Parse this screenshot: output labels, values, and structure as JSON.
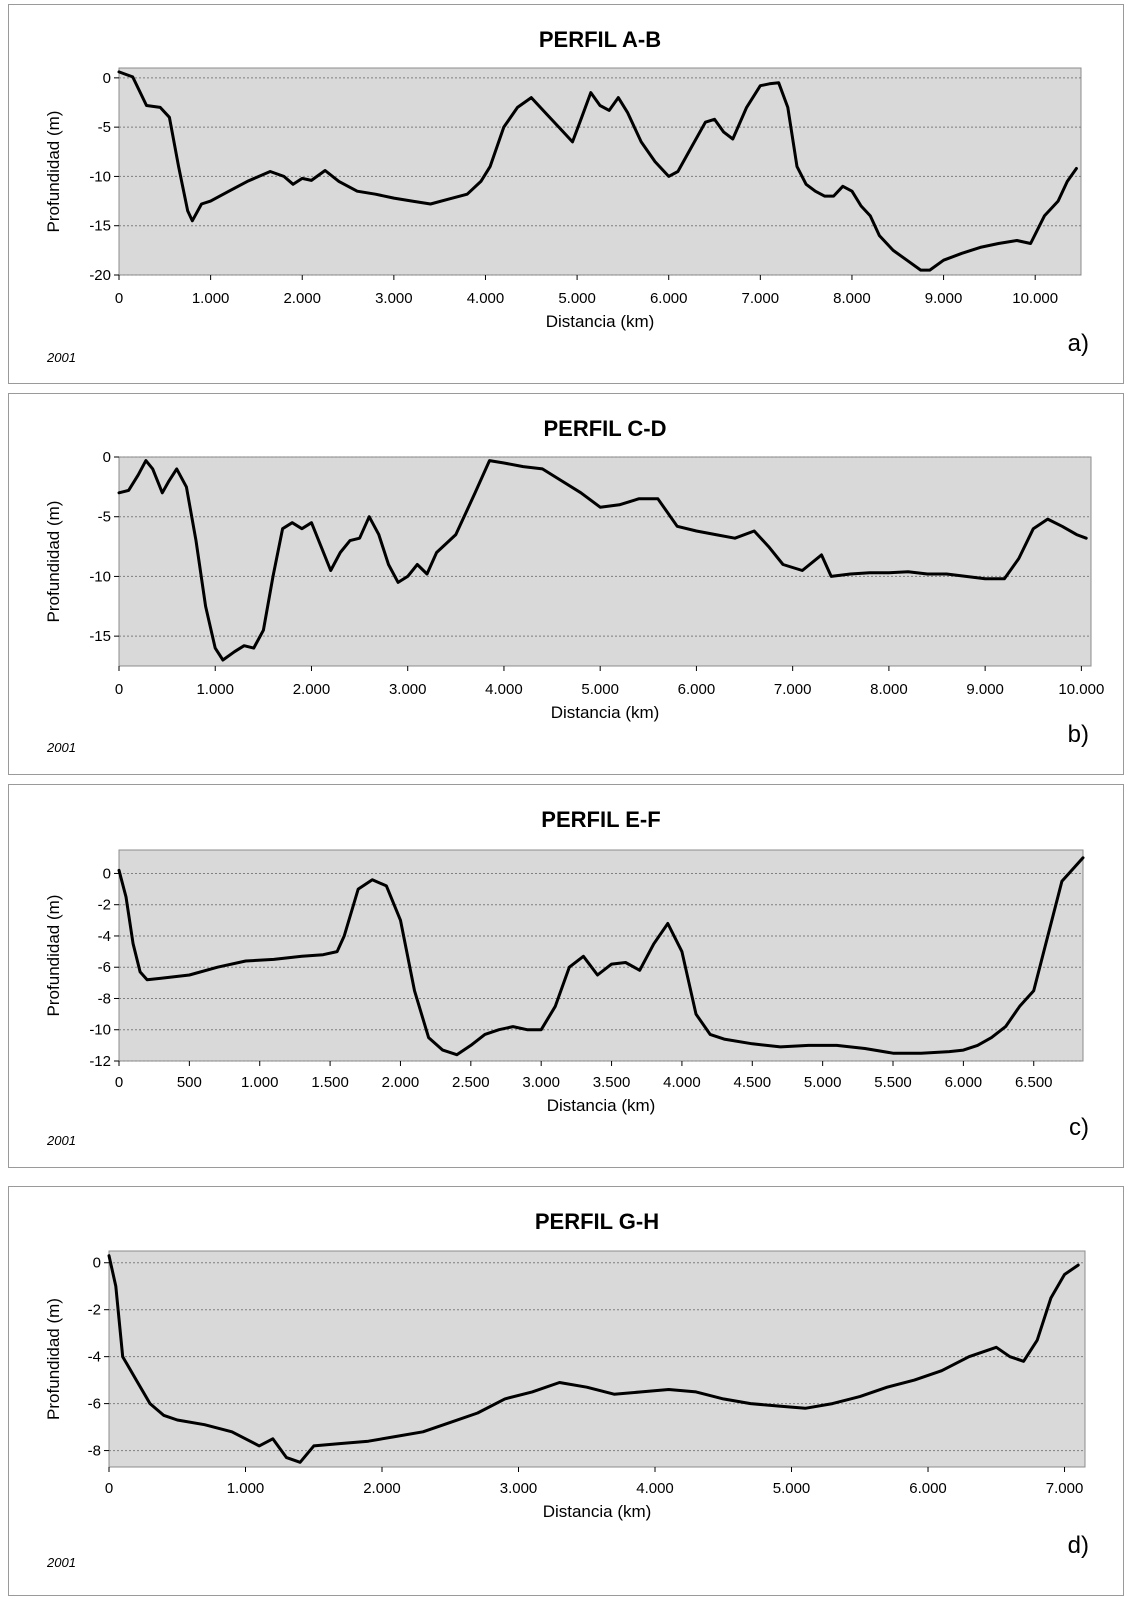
{
  "chart_data": [
    {
      "type": "line",
      "title": "PERFIL A-B",
      "xlabel": "Distancia (km)",
      "ylabel": "Profundidad (m)",
      "xlim": [
        0,
        10500
      ],
      "ylim": [
        -20,
        1
      ],
      "xticks": [
        0,
        1000,
        2000,
        3000,
        4000,
        5000,
        6000,
        7000,
        8000,
        9000,
        10000
      ],
      "xtick_labels": [
        "0",
        "1.000",
        "2.000",
        "3.000",
        "4.000",
        "5.000",
        "6.000",
        "7.000",
        "8.000",
        "9.000",
        "10.000"
      ],
      "yticks": [
        0,
        -5,
        -10,
        -15,
        -20
      ],
      "ytick_labels": [
        "0",
        "-5",
        "-10",
        "-15",
        "-20"
      ],
      "grid": "horizontal dotted",
      "year": "2001",
      "panel_label": "a)",
      "series": [
        {
          "x": [
            0,
            150,
            300,
            450,
            550,
            650,
            750,
            800,
            900,
            1000,
            1200,
            1400,
            1650,
            1800,
            1900,
            2000,
            2100,
            2250,
            2400,
            2600,
            2800,
            3000,
            3200,
            3400,
            3600,
            3800,
            3950,
            4050,
            4200,
            4350,
            4500,
            4650,
            4800,
            4950,
            5050,
            5150,
            5250,
            5350,
            5450,
            5550,
            5700,
            5850,
            6000,
            6100,
            6250,
            6400,
            6500,
            6600,
            6700,
            6850,
            7000,
            7100,
            7200,
            7300,
            7400,
            7500,
            7600,
            7700,
            7800,
            7900,
            8000,
            8100,
            8200,
            8300,
            8450,
            8600,
            8750,
            8850,
            9000,
            9200,
            9400,
            9600,
            9800,
            9950,
            10100,
            10250,
            10350,
            10450
          ],
          "y": [
            0.6,
            0.1,
            -2.8,
            -3.0,
            -4.0,
            -9.0,
            -13.5,
            -14.5,
            -12.8,
            -12.5,
            -11.5,
            -10.5,
            -9.5,
            -10.0,
            -10.8,
            -10.2,
            -10.4,
            -9.4,
            -10.5,
            -11.5,
            -11.8,
            -12.2,
            -12.5,
            -12.8,
            -12.3,
            -11.8,
            -10.5,
            -9.0,
            -5.0,
            -3.0,
            -2.0,
            -3.5,
            -5.0,
            -6.5,
            -4.0,
            -1.5,
            -2.8,
            -3.3,
            -2.0,
            -3.5,
            -6.5,
            -8.5,
            -10.0,
            -9.5,
            -7.0,
            -4.5,
            -4.2,
            -5.5,
            -6.2,
            -3.0,
            -0.8,
            -0.6,
            -0.5,
            -3.0,
            -9.0,
            -10.8,
            -11.5,
            -12.0,
            -12.0,
            -11.0,
            -11.5,
            -13.0,
            -14.0,
            -16.0,
            -17.5,
            -18.5,
            -19.5,
            -19.5,
            -18.5,
            -17.8,
            -17.2,
            -16.8,
            -16.5,
            -16.8,
            -14.0,
            -12.5,
            -10.5,
            -9.2
          ]
        }
      ]
    },
    {
      "type": "line",
      "title": "PERFIL C-D",
      "xlabel": "Distancia (km)",
      "ylabel": "Profundidad (m)",
      "xlim": [
        0,
        10100
      ],
      "ylim": [
        -17.5,
        0
      ],
      "xticks": [
        0,
        1000,
        2000,
        3000,
        4000,
        5000,
        6000,
        7000,
        8000,
        9000,
        10000
      ],
      "xtick_labels": [
        "0",
        "1.000",
        "2.000",
        "3.000",
        "4.000",
        "5.000",
        "6.000",
        "7.000",
        "8.000",
        "9.000",
        "10.000"
      ],
      "yticks": [
        0,
        -5,
        -10,
        -15
      ],
      "ytick_labels": [
        "0",
        "-5",
        "-10",
        "-15"
      ],
      "grid": "horizontal dotted",
      "year": "2001",
      "panel_label": "b)",
      "series": [
        {
          "x": [
            0,
            100,
            200,
            280,
            350,
            450,
            520,
            600,
            700,
            800,
            900,
            1000,
            1080,
            1200,
            1300,
            1400,
            1500,
            1600,
            1700,
            1800,
            1900,
            2000,
            2100,
            2200,
            2300,
            2400,
            2500,
            2600,
            2700,
            2800,
            2900,
            3000,
            3100,
            3200,
            3300,
            3500,
            3700,
            3850,
            4000,
            4200,
            4400,
            4600,
            4800,
            5000,
            5200,
            5400,
            5600,
            5800,
            6000,
            6200,
            6400,
            6600,
            6750,
            6900,
            7100,
            7300,
            7400,
            7600,
            7800,
            8000,
            8200,
            8400,
            8600,
            8800,
            9000,
            9200,
            9350,
            9500,
            9650,
            9800,
            9950,
            10050
          ],
          "y": [
            -3.0,
            -2.8,
            -1.5,
            -0.3,
            -1.0,
            -3.0,
            -2.0,
            -1.0,
            -2.5,
            -7.0,
            -12.5,
            -16.0,
            -17.0,
            -16.3,
            -15.8,
            -16.0,
            -14.5,
            -10.0,
            -6.0,
            -5.5,
            -6.0,
            -5.5,
            -7.5,
            -9.5,
            -8.0,
            -7.0,
            -6.8,
            -5.0,
            -6.5,
            -9.0,
            -10.5,
            -10.0,
            -9.0,
            -9.8,
            -8.0,
            -6.5,
            -3.0,
            -0.3,
            -0.5,
            -0.8,
            -1.0,
            -2.0,
            -3.0,
            -4.2,
            -4.0,
            -3.5,
            -3.5,
            -5.8,
            -6.2,
            -6.5,
            -6.8,
            -6.2,
            -7.5,
            -9.0,
            -9.5,
            -8.2,
            -10.0,
            -9.8,
            -9.7,
            -9.7,
            -9.6,
            -9.8,
            -9.8,
            -10.0,
            -10.2,
            -10.2,
            -8.5,
            -6.0,
            -5.2,
            -5.8,
            -6.5,
            -6.8
          ]
        }
      ]
    },
    {
      "type": "line",
      "title": "PERFIL E-F",
      "xlabel": "Distancia (km)",
      "ylabel": "Profundidad (m)",
      "xlim": [
        0,
        6850
      ],
      "ylim": [
        -12,
        1.5
      ],
      "xticks": [
        0,
        500,
        1000,
        1500,
        2000,
        2500,
        3000,
        3500,
        4000,
        4500,
        5000,
        5500,
        6000,
        6500
      ],
      "xtick_labels": [
        "0",
        "500",
        "1.000",
        "1.500",
        "2.000",
        "2.500",
        "3.000",
        "3.500",
        "4.000",
        "4.500",
        "5.000",
        "5.500",
        "6.000",
        "6.500"
      ],
      "yticks": [
        0,
        -2,
        -4,
        -6,
        -8,
        -10,
        -12
      ],
      "ytick_labels": [
        "0",
        "-2",
        "-4",
        "-6",
        "-8",
        "-10",
        "-12"
      ],
      "grid": "horizontal dotted",
      "year": "2001",
      "panel_label": "c)",
      "series": [
        {
          "x": [
            0,
            50,
            100,
            150,
            200,
            300,
            500,
            700,
            900,
            1100,
            1300,
            1450,
            1550,
            1600,
            1700,
            1800,
            1900,
            2000,
            2100,
            2200,
            2300,
            2400,
            2500,
            2600,
            2700,
            2800,
            2900,
            3000,
            3100,
            3200,
            3300,
            3400,
            3500,
            3600,
            3700,
            3800,
            3900,
            4000,
            4100,
            4200,
            4300,
            4500,
            4700,
            4900,
            5100,
            5300,
            5500,
            5700,
            5900,
            6000,
            6100,
            6200,
            6300,
            6400,
            6500,
            6600,
            6700,
            6850
          ],
          "y": [
            0.2,
            -1.5,
            -4.5,
            -6.3,
            -6.8,
            -6.7,
            -6.5,
            -6.0,
            -5.6,
            -5.5,
            -5.3,
            -5.2,
            -5.0,
            -4.0,
            -1.0,
            -0.4,
            -0.8,
            -3.0,
            -7.5,
            -10.5,
            -11.3,
            -11.6,
            -11.0,
            -10.3,
            -10.0,
            -9.8,
            -10.0,
            -10.0,
            -8.5,
            -6.0,
            -5.3,
            -6.5,
            -5.8,
            -5.7,
            -6.2,
            -4.5,
            -3.2,
            -5.0,
            -9.0,
            -10.3,
            -10.6,
            -10.9,
            -11.1,
            -11.0,
            -11.0,
            -11.2,
            -11.5,
            -11.5,
            -11.4,
            -11.3,
            -11.0,
            -10.5,
            -9.8,
            -8.5,
            -7.5,
            -4.0,
            -0.5,
            1.0
          ]
        }
      ]
    },
    {
      "type": "line",
      "title": "PERFIL G-H",
      "xlabel": "Distancia (km)",
      "ylabel": "Profundidad (m)",
      "xlim": [
        0,
        7150
      ],
      "ylim": [
        -8.7,
        0.5
      ],
      "xticks": [
        0,
        1000,
        2000,
        3000,
        4000,
        5000,
        6000,
        7000
      ],
      "xtick_labels": [
        "0",
        "1.000",
        "2.000",
        "3.000",
        "4.000",
        "5.000",
        "6.000",
        "7.000"
      ],
      "yticks": [
        0,
        -2,
        -4,
        -6,
        -8
      ],
      "ytick_labels": [
        "0",
        "-2",
        "-4",
        "-6",
        "-8"
      ],
      "grid": "horizontal dotted",
      "year": "2001",
      "panel_label": "d)",
      "series": [
        {
          "x": [
            0,
            50,
            100,
            150,
            200,
            300,
            400,
            500,
            700,
            900,
            1100,
            1200,
            1300,
            1400,
            1500,
            1700,
            1900,
            2100,
            2300,
            2500,
            2700,
            2900,
            3100,
            3300,
            3500,
            3700,
            3900,
            4100,
            4300,
            4500,
            4700,
            4900,
            5100,
            5300,
            5500,
            5700,
            5900,
            6100,
            6300,
            6500,
            6600,
            6700,
            6800,
            6900,
            7000,
            7100
          ],
          "y": [
            0.3,
            -1.0,
            -4.0,
            -4.5,
            -5.0,
            -6.0,
            -6.5,
            -6.7,
            -6.9,
            -7.2,
            -7.8,
            -7.5,
            -8.3,
            -8.5,
            -7.8,
            -7.7,
            -7.6,
            -7.4,
            -7.2,
            -6.8,
            -6.4,
            -5.8,
            -5.5,
            -5.1,
            -5.3,
            -5.6,
            -5.5,
            -5.4,
            -5.5,
            -5.8,
            -6.0,
            -6.1,
            -6.2,
            -6.0,
            -5.7,
            -5.3,
            -5.0,
            -4.6,
            -4.0,
            -3.6,
            -4.0,
            -4.2,
            -3.3,
            -1.5,
            -0.5,
            -0.1
          ]
        }
      ]
    }
  ]
}
